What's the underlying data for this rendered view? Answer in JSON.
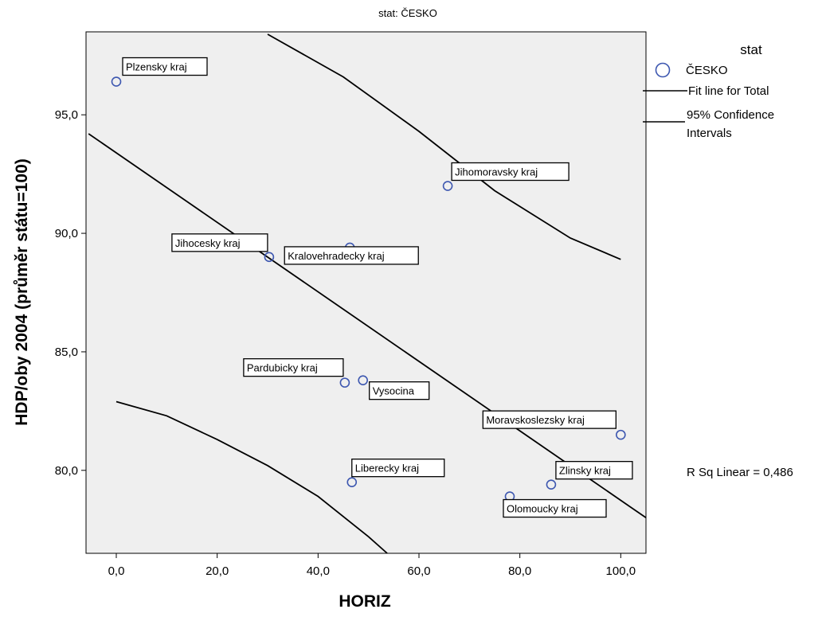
{
  "chart_data": {
    "type": "scatter",
    "title": "stat: ČESKO",
    "xlabel": "HORIZ",
    "ylabel": "HDP/oby 2004 (průměr státu=100)",
    "xlim": [
      -6,
      105
    ],
    "ylim": [
      76.5,
      98.5
    ],
    "xticks": [
      0,
      20,
      40,
      60,
      80,
      100
    ],
    "xtick_labels": [
      "0,0",
      "20,0",
      "40,0",
      "60,0",
      "80,0",
      "100,0"
    ],
    "yticks": [
      80,
      85,
      90,
      95
    ],
    "ytick_labels": [
      "80,0",
      "85,0",
      "90,0",
      "95,0"
    ],
    "grid": false,
    "points": [
      {
        "label": "Plzensky kraj",
        "x": 0.0,
        "y": 96.4
      },
      {
        "label": "Jihomoravsky kraj",
        "x": 65.7,
        "y": 92.0
      },
      {
        "label": "Jihocesky kraj",
        "x": 30.3,
        "y": 89.0
      },
      {
        "label": "Kralovehradecky kraj",
        "x": 46.3,
        "y": 89.4
      },
      {
        "label": "Pardubicky kraj",
        "x": 45.3,
        "y": 83.7
      },
      {
        "label": "Vysocina",
        "x": 48.9,
        "y": 83.8
      },
      {
        "label": "Moravskoslezsky kraj",
        "x": 100.0,
        "y": 81.5
      },
      {
        "label": "Liberecky kraj",
        "x": 46.7,
        "y": 79.5
      },
      {
        "label": "Zlinsky kraj",
        "x": 86.2,
        "y": 79.4
      },
      {
        "label": "Olomoucky kraj",
        "x": 78.0,
        "y": 78.9
      }
    ],
    "fit_line": [
      [
        -5.5,
        94.2
      ],
      [
        105,
        78.0
      ]
    ],
    "ci_upper": [
      [
        30,
        98.4
      ],
      [
        45,
        96.6
      ],
      [
        60,
        94.3
      ],
      [
        75,
        91.8
      ],
      [
        90,
        89.8
      ],
      [
        100,
        88.9
      ]
    ],
    "ci_lower": [
      [
        0,
        82.9
      ],
      [
        10,
        82.3
      ],
      [
        20,
        81.3
      ],
      [
        30,
        80.2
      ],
      [
        40,
        78.9
      ],
      [
        50,
        77.2
      ],
      [
        53.7,
        76.5
      ]
    ],
    "r_squared_label": "R Sq Linear = 0,486",
    "legend": {
      "title": "stat",
      "marker_label": "ČESKO",
      "fit_label": "Fit line for Total",
      "ci_label_line1": "95% Confidence",
      "ci_label_line2": "Intervals",
      "placement": "right"
    },
    "colors": {
      "plot_background": "#efefef",
      "marker": "#3d57b0",
      "line": "#000000"
    }
  }
}
